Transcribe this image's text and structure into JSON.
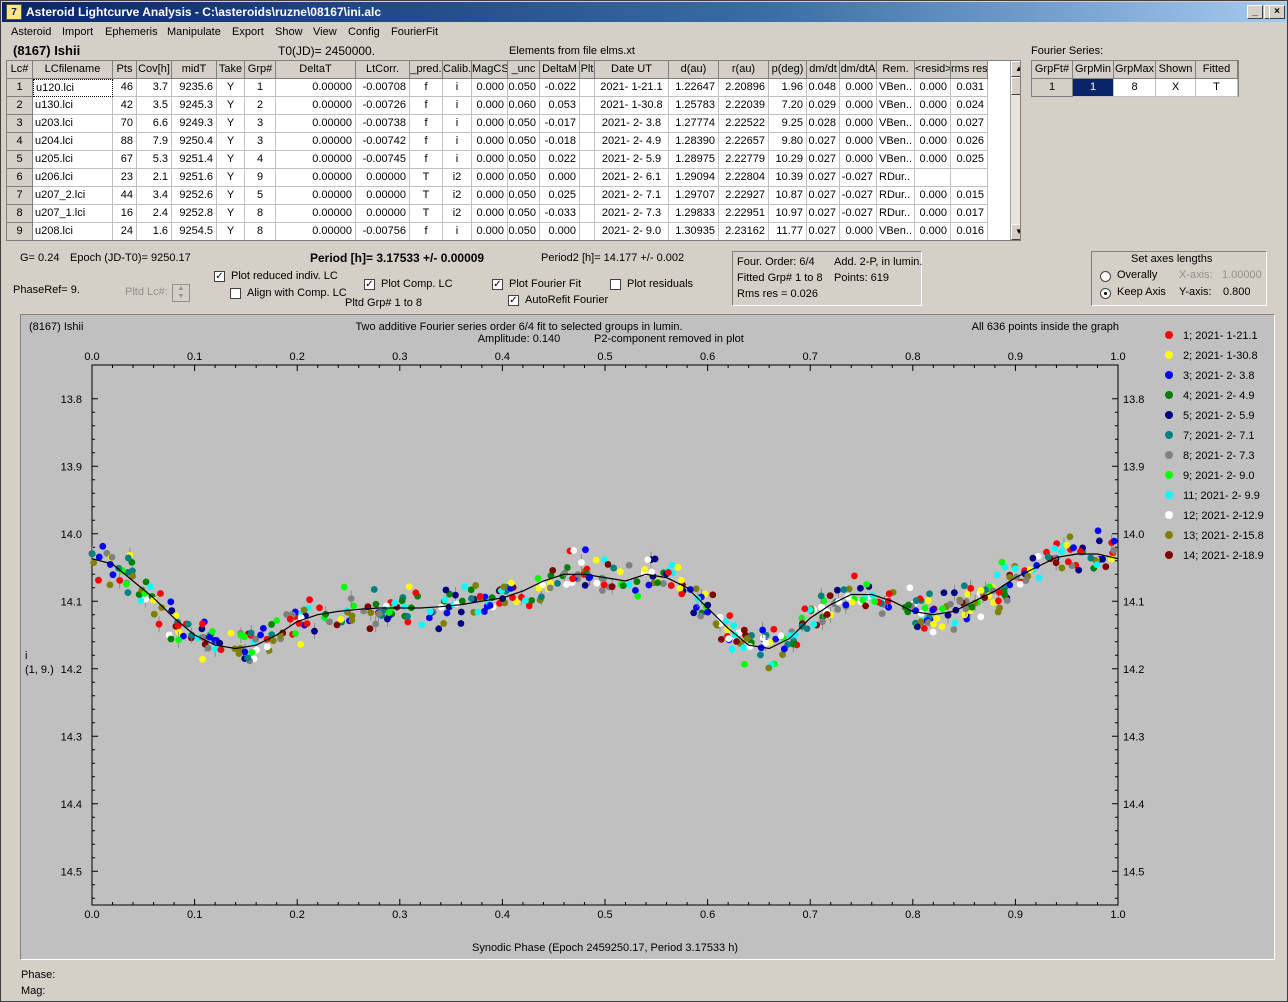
{
  "window": {
    "title": "Asteroid Lightcurve Analysis - C:\\asteroids\\ruzne\\08167\\ini.alc",
    "icon_name": "app-icon",
    "minimize": "_",
    "maximize": "□",
    "close": "×"
  },
  "menu": [
    "Asteroid",
    "Import",
    "Ephemeris",
    "Manipulate",
    "Export",
    "Show",
    "View",
    "Config",
    "FourierFit"
  ],
  "header": {
    "asteroid": "(8167) Ishii",
    "t0": "T0(JD)= 2450000.",
    "elements": "Elements from file elms.xt"
  },
  "grid": {
    "columns": [
      "Lc#",
      "LCfilename",
      "Pts",
      "Cov[h]",
      "midT",
      "Take",
      "Grp#",
      "DeltaT",
      "LtCorr.",
      "_pred.",
      "Calib.",
      "MagCS",
      "_unc",
      "DeltaM",
      "Plt",
      "Date UT",
      "d(au)",
      "r(au)",
      "p(deg)",
      "dm/dt",
      "dm/dtA",
      "Rem.",
      "<resid>",
      "rms res"
    ],
    "rows": [
      [
        "1",
        "u120.lci",
        "46",
        "3.7",
        "9235.6",
        "Y",
        "1",
        "0.00000",
        "-0.00708",
        "f",
        "i",
        "0.000",
        "0.050",
        "-0.022",
        "",
        "2021- 1-21.1",
        "1.22647",
        "2.20896",
        "1.96",
        "0.048",
        "0.000",
        "VBen..",
        "0.000",
        "0.031"
      ],
      [
        "2",
        "u130.lci",
        "42",
        "3.5",
        "9245.3",
        "Y",
        "2",
        "0.00000",
        "-0.00726",
        "f",
        "i",
        "0.000",
        "0.060",
        "0.053",
        "",
        "2021- 1-30.8",
        "1.25783",
        "2.22039",
        "7.20",
        "0.029",
        "0.000",
        "VBen..",
        "0.000",
        "0.024"
      ],
      [
        "3",
        "u203.lci",
        "70",
        "6.6",
        "9249.3",
        "Y",
        "3",
        "0.00000",
        "-0.00738",
        "f",
        "i",
        "0.000",
        "0.050",
        "-0.017",
        "",
        "2021- 2- 3.8",
        "1.27774",
        "2.22522",
        "9.25",
        "0.028",
        "0.000",
        "VBen..",
        "0.000",
        "0.027"
      ],
      [
        "4",
        "u204.lci",
        "88",
        "7.9",
        "9250.4",
        "Y",
        "3",
        "0.00000",
        "-0.00742",
        "f",
        "i",
        "0.000",
        "0.050",
        "-0.018",
        "",
        "2021- 2- 4.9",
        "1.28390",
        "2.22657",
        "9.80",
        "0.027",
        "0.000",
        "VBen..",
        "0.000",
        "0.026"
      ],
      [
        "5",
        "u205.lci",
        "67",
        "5.3",
        "9251.4",
        "Y",
        "4",
        "0.00000",
        "-0.00745",
        "f",
        "i",
        "0.000",
        "0.050",
        "0.022",
        "",
        "2021- 2- 5.9",
        "1.28975",
        "2.22779",
        "10.29",
        "0.027",
        "0.000",
        "VBen..",
        "0.000",
        "0.025"
      ],
      [
        "6",
        "u206.lci",
        "23",
        "2.1",
        "9251.6",
        "Y",
        "9",
        "0.00000",
        "0.00000",
        "T",
        "i2",
        "0.000",
        "0.050",
        "0.000",
        "",
        "2021- 2- 6.1",
        "1.29094",
        "2.22804",
        "10.39",
        "0.027",
        "-0.027",
        "RDur..",
        "",
        ""
      ],
      [
        "7",
        "u207_2.lci",
        "44",
        "3.4",
        "9252.6",
        "Y",
        "5",
        "0.00000",
        "0.00000",
        "T",
        "i2",
        "0.000",
        "0.050",
        "0.025",
        "",
        "2021- 2- 7.1",
        "1.29707",
        "2.22927",
        "10.87",
        "0.027",
        "-0.027",
        "RDur..",
        "0.000",
        "0.015"
      ],
      [
        "8",
        "u207_1.lci",
        "16",
        "2.4",
        "9252.8",
        "Y",
        "8",
        "0.00000",
        "0.00000",
        "T",
        "i2",
        "0.000",
        "0.050",
        "-0.033",
        "",
        "2021- 2- 7.3",
        "1.29833",
        "2.22951",
        "10.97",
        "0.027",
        "-0.027",
        "RDur..",
        "0.000",
        "0.017"
      ],
      [
        "9",
        "u208.lci",
        "24",
        "1.6",
        "9254.5",
        "Y",
        "8",
        "0.00000",
        "-0.00756",
        "f",
        "i",
        "0.000",
        "0.050",
        "0.000",
        "",
        "2021- 2- 9.0",
        "1.30935",
        "2.23162",
        "11.77",
        "0.027",
        "0.000",
        "VBen..",
        "0.000",
        "0.016"
      ]
    ]
  },
  "fourier_series": {
    "label": "Fourier Series:",
    "columns": [
      "GrpFt#",
      "GrpMin",
      "GrpMax",
      "Shown",
      "Fitted"
    ],
    "row": [
      "1",
      "1",
      "8",
      "X",
      "T"
    ]
  },
  "controls": {
    "g": "G= 0.24",
    "epoch": "Epoch (JD-T0)= 9250.17",
    "period": "Period [h]= 3.17533 +/- 0.00009",
    "period2": "Period2 [h]= 14.177 +/- 0.002",
    "phaseref": "PhaseRef= 9.",
    "pltd_lc": "Pltd Lc#:",
    "plot_reduced": "Plot reduced indiv. LC",
    "align_comp": "Align with Comp. LC",
    "plot_comp": "Plot Comp. LC",
    "pltd_grp": "Pltd Grp#  1   to   8",
    "plot_fourier": "Plot Fourier Fit",
    "autorefit": "AutoRefit Fourier",
    "plot_resid": "Plot residuals",
    "four_order": "Four. Order:  6/4",
    "add2p": "Add. 2-P, in lumin.",
    "fitted_grp": "Fitted Grp# 1 to 8",
    "points": "Points: 619",
    "rms": "Rms res     = 0.026",
    "axes_title": "Set axes lengths",
    "overally": "Overally",
    "keep_axis": "Keep Axis",
    "xaxis_label": "X-axis:",
    "xaxis_val": "1.00000",
    "yaxis_label": "Y-axis:",
    "yaxis_val": "0.800"
  },
  "checks": {
    "plot_reduced": "✓",
    "align_comp": "",
    "plot_comp": "✓",
    "plot_fourier": "✓",
    "autorefit": "✓",
    "plot_resid": ""
  },
  "status": {
    "phase": "Phase:",
    "mag": "Mag:"
  },
  "chart_data": {
    "type": "scatter",
    "title": "Two additive Fourier series order 6/4 fit to selected groups in lumin.",
    "subtitle_lines": [
      "Amplitude: 0.140",
      "P2-component removed in plot"
    ],
    "top_left": "(8167) Ishii",
    "top_right": "All 636 points inside the graph",
    "xlabel": "Synodic Phase (Epoch 2459250.17, Period 3.17533 h)",
    "ylabel_lines": [
      "i",
      "(1, 9.)"
    ],
    "xlim": [
      0,
      1
    ],
    "ylim": [
      14.55,
      13.75
    ],
    "y_inverted": true,
    "xticks": [
      "0.0",
      "0.1",
      "0.2",
      "0.3",
      "0.4",
      "0.5",
      "0.6",
      "0.7",
      "0.8",
      "0.9",
      "1.0"
    ],
    "yticks": [
      "13.8",
      "13.9",
      "14.0",
      "14.1",
      "14.2",
      "14.3",
      "14.4",
      "14.5"
    ],
    "fit_curve": {
      "x": [
        0,
        0.02,
        0.04,
        0.06,
        0.08,
        0.1,
        0.12,
        0.14,
        0.16,
        0.18,
        0.2,
        0.22,
        0.24,
        0.26,
        0.28,
        0.3,
        0.32,
        0.34,
        0.36,
        0.38,
        0.4,
        0.42,
        0.44,
        0.46,
        0.48,
        0.5,
        0.52,
        0.54,
        0.56,
        0.58,
        0.6,
        0.62,
        0.64,
        0.66,
        0.68,
        0.7,
        0.72,
        0.74,
        0.76,
        0.78,
        0.8,
        0.82,
        0.84,
        0.86,
        0.88,
        0.9,
        0.92,
        0.94,
        0.96,
        0.98,
        1.0
      ],
      "y": [
        14.037,
        14.045,
        14.07,
        14.095,
        14.125,
        14.15,
        14.165,
        14.17,
        14.165,
        14.15,
        14.13,
        14.12,
        14.115,
        14.112,
        14.11,
        14.11,
        14.11,
        14.108,
        14.105,
        14.1,
        14.095,
        14.085,
        14.07,
        14.06,
        14.06,
        14.065,
        14.07,
        14.06,
        14.065,
        14.08,
        14.11,
        14.14,
        14.165,
        14.17,
        14.155,
        14.125,
        14.105,
        14.09,
        14.09,
        14.1,
        14.115,
        14.12,
        14.115,
        14.1,
        14.085,
        14.065,
        14.05,
        14.035,
        14.03,
        14.03,
        14.037
      ]
    },
    "series": [
      {
        "name": "1; 2021- 1-21.1",
        "color": "#ff0000"
      },
      {
        "name": "2; 2021- 1-30.8",
        "color": "#ffff00"
      },
      {
        "name": "3; 2021- 2- 3.8",
        "color": "#0000ff"
      },
      {
        "name": "4; 2021- 2- 4.9",
        "color": "#008000"
      },
      {
        "name": "5; 2021- 2- 5.9",
        "color": "#000080"
      },
      {
        "name": "7; 2021- 2- 7.1",
        "color": "#008080"
      },
      {
        "name": "8; 2021- 2- 7.3",
        "color": "#808080"
      },
      {
        "name": "9; 2021- 2- 9.0",
        "color": "#00ff00"
      },
      {
        "name": "11; 2021- 2- 9.9",
        "color": "#00ffff"
      },
      {
        "name": "12; 2021- 2-12.9",
        "color": "#ffffff"
      },
      {
        "name": "13; 2021- 2-15.8",
        "color": "#808000"
      },
      {
        "name": "14; 2021- 2-18.9",
        "color": "#800000"
      }
    ]
  }
}
